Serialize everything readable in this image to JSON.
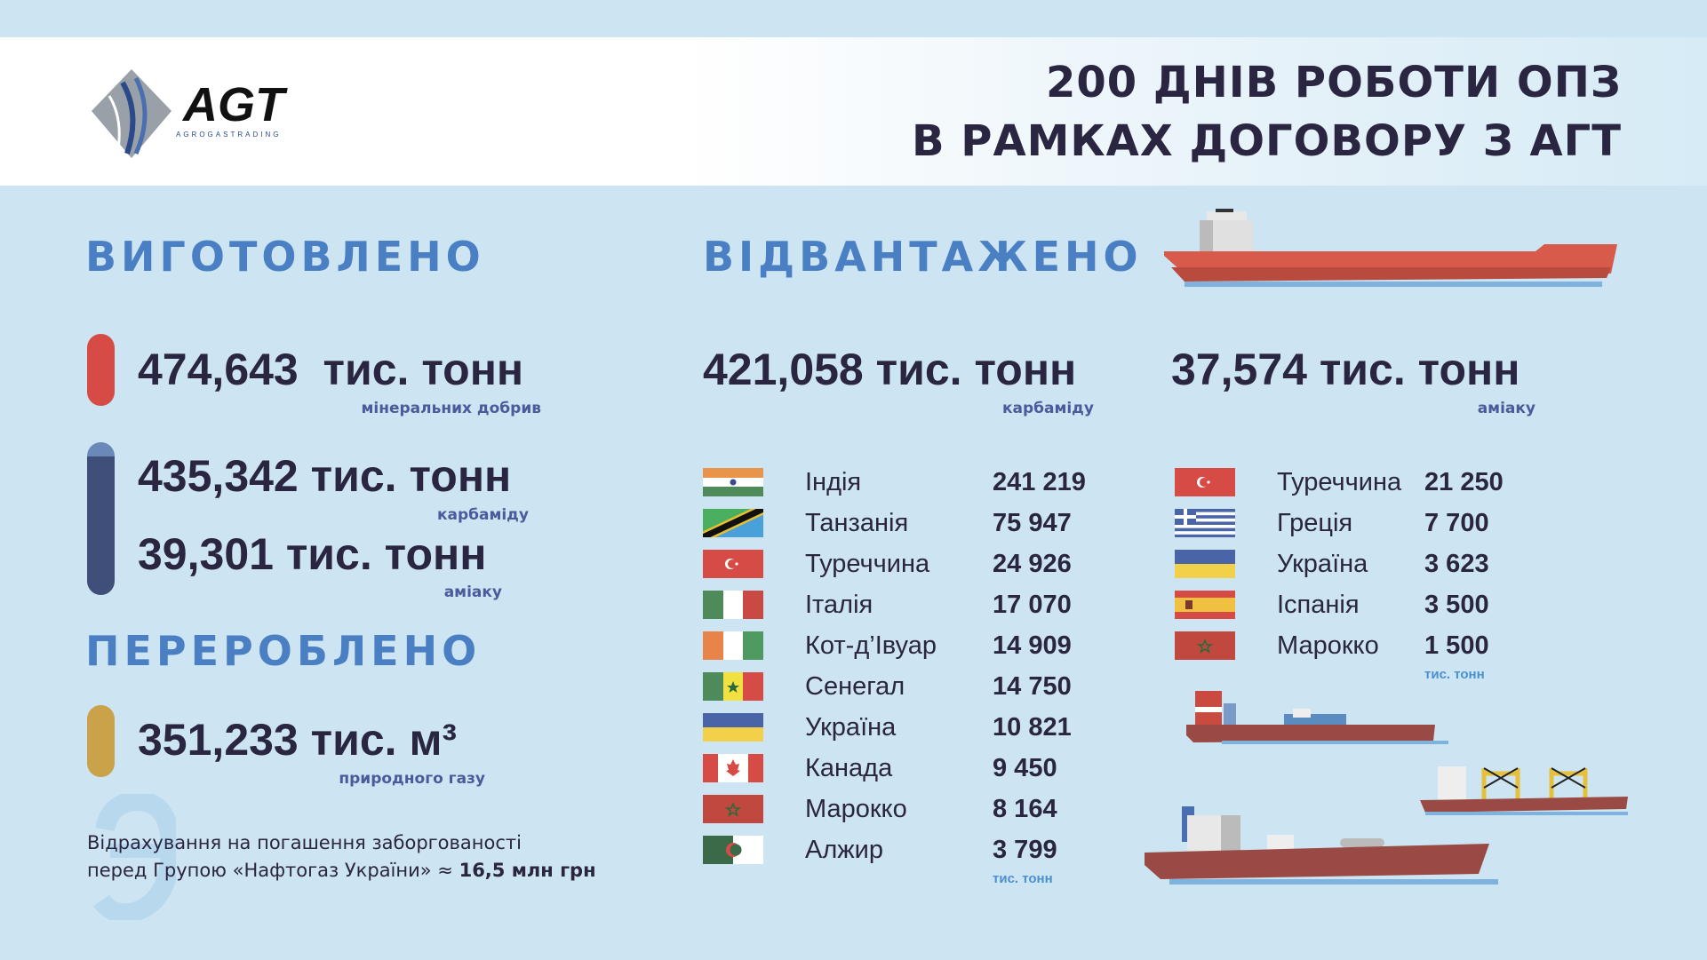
{
  "header": {
    "logo_text": "AGT",
    "logo_subtext": "AGROGASTRADING",
    "title_line1": "200 ДНІВ РОБОТИ ОПЗ",
    "title_line2": "В РАМКАХ ДОГОВОРУ З АГТ"
  },
  "produced": {
    "heading": "ВИГОТОВЛЕНО",
    "items": [
      {
        "value": "474,643  тис. тонн",
        "label": "мінеральних добрив",
        "color": "#d64b45"
      },
      {
        "value": "435,342 тис. тонн",
        "label": "карбаміду",
        "color": "#404f7a"
      },
      {
        "value": "39,301 тис. тонн",
        "label": "аміаку",
        "color": "#404f7a"
      }
    ]
  },
  "processed": {
    "heading": "ПЕРЕРОБЛЕНО",
    "value": "351,233 тис. м³",
    "label": "природного газу",
    "color": "#c9a24a"
  },
  "note": {
    "line1": "Відрахування на погашення заборгованості",
    "line2_prefix": "перед Групою «Нафтогаз України» ≈ ",
    "line2_bold": "16,5 млн грн"
  },
  "shipped": {
    "heading": "ВІДВАНТАЖЕНО",
    "urea": {
      "value": "421,058 тис. тонн",
      "label": "карбаміду",
      "unit": "тис. тонн",
      "rows": [
        {
          "flag": "india",
          "country": "Індія",
          "value": "241 219"
        },
        {
          "flag": "tanzania",
          "country": "Танзанія",
          "value": "75 947"
        },
        {
          "flag": "turkey",
          "country": "Туреччина",
          "value": "24 926"
        },
        {
          "flag": "italy",
          "country": "Італія",
          "value": "17 070"
        },
        {
          "flag": "ivory-coast",
          "country": "Кот-д’Івуар",
          "value": "14 909"
        },
        {
          "flag": "senegal",
          "country": "Сенегал",
          "value": "14 750"
        },
        {
          "flag": "ukraine",
          "country": "Україна",
          "value": "10 821"
        },
        {
          "flag": "canada",
          "country": "Канада",
          "value": "9 450"
        },
        {
          "flag": "morocco",
          "country": "Марокко",
          "value": "8 164"
        },
        {
          "flag": "algeria",
          "country": "Алжир",
          "value": "3 799"
        }
      ]
    },
    "ammonia": {
      "value": "37,574 тис. тонн",
      "label": "аміаку",
      "unit": "тис. тонн",
      "rows": [
        {
          "flag": "turkey",
          "country": "Туреччина",
          "value": "21 250"
        },
        {
          "flag": "greece",
          "country": "Греція",
          "value": "7 700"
        },
        {
          "flag": "ukraine",
          "country": "Україна",
          "value": "3 623"
        },
        {
          "flag": "spain",
          "country": "Іспанія",
          "value": "3 500"
        },
        {
          "flag": "morocco",
          "country": "Марокко",
          "value": "1 500"
        }
      ]
    }
  },
  "colors": {
    "background": "#cde5f2",
    "accent": "#4a7fc4",
    "text": "#2a2540",
    "ship_hull": "#9a4a44"
  }
}
